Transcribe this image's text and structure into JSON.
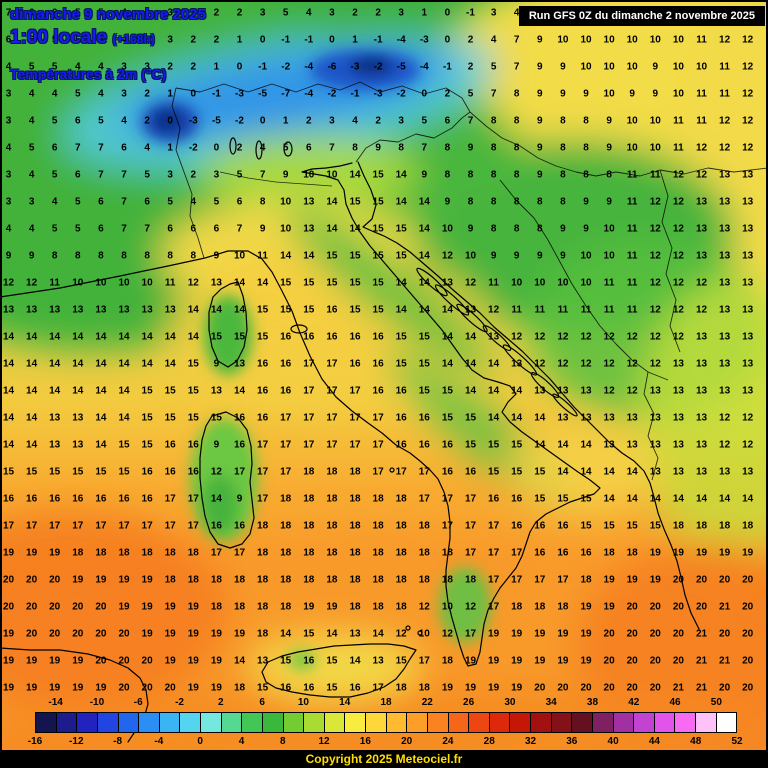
{
  "header": {
    "date_line": "dimanche 9 novembre 2025",
    "time_line": "1:00 locale",
    "offset": "(+168h)",
    "param_line": "Températures à 2m (°C)",
    "text_color": "#1d18f0"
  },
  "run_box": {
    "text": "Run GFS 0Z du dimanche 2 novembre 2025"
  },
  "footer": {
    "copyright": "Copyright 2025 Meteociel.fr",
    "text_color": "#ffdf00"
  },
  "scale": {
    "min": -16,
    "max": 52,
    "top_labels": [
      -14,
      -10,
      -6,
      -2,
      2,
      6,
      10,
      14,
      18,
      22,
      26,
      30,
      34,
      38,
      42,
      46,
      50
    ],
    "bottom_labels": [
      -16,
      -12,
      -8,
      -4,
      0,
      4,
      8,
      12,
      16,
      20,
      24,
      28,
      32,
      36,
      40,
      44,
      48,
      52
    ],
    "segment_colors": [
      "#14144f",
      "#1c1c8c",
      "#2222bf",
      "#2244e0",
      "#2266ee",
      "#2b8ef5",
      "#3ab4f2",
      "#55d4ef",
      "#74e8df",
      "#55d892",
      "#42c655",
      "#3bb83b",
      "#74cc33",
      "#aadb32",
      "#d9e838",
      "#f7ec3f",
      "#fed73a",
      "#feba30",
      "#fd9e28",
      "#fb8221",
      "#f6661a",
      "#ee4612",
      "#dd280b",
      "#c41708",
      "#a31010",
      "#841018",
      "#651021",
      "#7f2063",
      "#a131a3",
      "#c242d2",
      "#e253e9",
      "#f76bf2",
      "#ffc2f8",
      "#ffffff"
    ]
  },
  "temperature_grid": {
    "units": "°C",
    "rows": [
      [
        7,
        6,
        6,
        5,
        5,
        4,
        4,
        3,
        3,
        2,
        2,
        3,
        5,
        4,
        3,
        2,
        2,
        3,
        1,
        0,
        -1,
        3,
        4,
        8,
        9,
        10,
        10,
        10,
        10,
        11,
        10,
        12,
        12
      ],
      [
        6,
        6,
        5,
        5,
        4,
        4,
        3,
        3,
        2,
        2,
        1,
        0,
        -1,
        -1,
        0,
        1,
        -1,
        -4,
        -3,
        0,
        2,
        4,
        7,
        9,
        10,
        10,
        10,
        10,
        10,
        10,
        11,
        12,
        12
      ],
      [
        4,
        5,
        5,
        4,
        4,
        3,
        3,
        2,
        2,
        1,
        0,
        -1,
        -2,
        -4,
        -6,
        -3,
        -2,
        -5,
        -4,
        -1,
        2,
        5,
        7,
        9,
        9,
        10,
        10,
        10,
        9,
        10,
        10,
        11,
        12
      ],
      [
        3,
        4,
        4,
        5,
        4,
        3,
        2,
        1,
        0,
        -1,
        -3,
        -5,
        -7,
        -4,
        -2,
        -1,
        -3,
        -2,
        0,
        2,
        5,
        7,
        8,
        9,
        9,
        9,
        10,
        9,
        9,
        10,
        11,
        11,
        12
      ],
      [
        3,
        4,
        5,
        6,
        5,
        4,
        2,
        0,
        -3,
        -5,
        -2,
        0,
        1,
        2,
        3,
        4,
        2,
        3,
        5,
        6,
        7,
        8,
        8,
        9,
        8,
        8,
        9,
        10,
        10,
        11,
        11,
        12,
        12
      ],
      [
        4,
        5,
        6,
        7,
        7,
        6,
        4,
        1,
        -2,
        0,
        2,
        4,
        5,
        6,
        7,
        8,
        9,
        8,
        7,
        8,
        9,
        8,
        8,
        9,
        8,
        8,
        9,
        10,
        10,
        11,
        12,
        12,
        12
      ],
      [
        3,
        4,
        5,
        6,
        7,
        7,
        5,
        3,
        2,
        3,
        5,
        7,
        9,
        10,
        10,
        14,
        15,
        14,
        9,
        8,
        8,
        8,
        8,
        9,
        8,
        8,
        8,
        11,
        11,
        12,
        12,
        13,
        13
      ],
      [
        3,
        3,
        4,
        5,
        6,
        7,
        6,
        5,
        4,
        5,
        6,
        8,
        10,
        13,
        14,
        15,
        15,
        14,
        14,
        9,
        8,
        8,
        8,
        8,
        8,
        9,
        9,
        11,
        12,
        12,
        13,
        13,
        13
      ],
      [
        4,
        4,
        5,
        5,
        6,
        7,
        7,
        6,
        6,
        6,
        7,
        9,
        10,
        13,
        14,
        14,
        15,
        15,
        14,
        10,
        9,
        8,
        8,
        8,
        9,
        9,
        10,
        11,
        12,
        12,
        13,
        13,
        13
      ],
      [
        9,
        9,
        8,
        8,
        8,
        8,
        8,
        8,
        8,
        9,
        10,
        11,
        14,
        14,
        15,
        15,
        15,
        15,
        14,
        12,
        10,
        9,
        9,
        9,
        9,
        10,
        10,
        11,
        12,
        12,
        13,
        13,
        13
      ],
      [
        12,
        12,
        11,
        10,
        10,
        10,
        10,
        11,
        12,
        13,
        14,
        14,
        15,
        15,
        15,
        15,
        15,
        14,
        14,
        13,
        12,
        11,
        10,
        10,
        10,
        10,
        11,
        11,
        12,
        12,
        12,
        13,
        13
      ],
      [
        13,
        13,
        13,
        13,
        13,
        13,
        13,
        13,
        14,
        14,
        14,
        15,
        15,
        15,
        16,
        15,
        15,
        14,
        14,
        14,
        13,
        12,
        11,
        11,
        11,
        11,
        11,
        11,
        12,
        12,
        12,
        13,
        13
      ],
      [
        14,
        14,
        14,
        14,
        14,
        14,
        14,
        14,
        14,
        15,
        15,
        15,
        16,
        16,
        16,
        16,
        16,
        15,
        15,
        14,
        14,
        13,
        12,
        12,
        12,
        12,
        12,
        12,
        12,
        12,
        13,
        13,
        13
      ],
      [
        14,
        14,
        14,
        14,
        14,
        14,
        14,
        14,
        15,
        9,
        13,
        16,
        16,
        17,
        17,
        16,
        16,
        15,
        15,
        14,
        14,
        14,
        13,
        12,
        12,
        12,
        12,
        12,
        12,
        13,
        13,
        13,
        13
      ],
      [
        14,
        14,
        14,
        14,
        14,
        14,
        15,
        15,
        15,
        13,
        14,
        16,
        16,
        17,
        17,
        17,
        16,
        16,
        15,
        15,
        14,
        14,
        14,
        13,
        13,
        13,
        12,
        12,
        13,
        13,
        13,
        13,
        13
      ],
      [
        14,
        14,
        13,
        13,
        14,
        14,
        15,
        15,
        15,
        15,
        16,
        16,
        17,
        17,
        17,
        17,
        17,
        16,
        16,
        15,
        15,
        14,
        14,
        14,
        13,
        13,
        13,
        13,
        13,
        13,
        13,
        12,
        12
      ],
      [
        14,
        14,
        13,
        13,
        14,
        15,
        15,
        16,
        16,
        9,
        16,
        17,
        17,
        17,
        17,
        17,
        17,
        16,
        16,
        16,
        15,
        15,
        15,
        14,
        14,
        14,
        13,
        13,
        13,
        13,
        13,
        12,
        12
      ],
      [
        15,
        15,
        15,
        15,
        15,
        15,
        16,
        16,
        16,
        12,
        17,
        17,
        17,
        18,
        18,
        18,
        17,
        17,
        17,
        16,
        16,
        15,
        15,
        15,
        14,
        14,
        14,
        14,
        13,
        13,
        13,
        13,
        13
      ],
      [
        16,
        16,
        16,
        16,
        16,
        16,
        16,
        17,
        17,
        14,
        9,
        17,
        18,
        18,
        18,
        18,
        18,
        18,
        17,
        17,
        17,
        16,
        16,
        15,
        15,
        15,
        14,
        14,
        14,
        14,
        14,
        14,
        14
      ],
      [
        17,
        17,
        17,
        17,
        17,
        17,
        17,
        17,
        17,
        16,
        16,
        18,
        18,
        18,
        18,
        18,
        18,
        18,
        18,
        17,
        17,
        17,
        16,
        16,
        16,
        15,
        15,
        15,
        15,
        18,
        18,
        18,
        18
      ],
      [
        19,
        19,
        19,
        18,
        18,
        18,
        18,
        18,
        18,
        17,
        17,
        18,
        18,
        18,
        18,
        18,
        18,
        18,
        18,
        18,
        17,
        17,
        17,
        16,
        16,
        16,
        18,
        18,
        19,
        19,
        19,
        19,
        19
      ],
      [
        20,
        20,
        20,
        19,
        19,
        19,
        19,
        18,
        18,
        18,
        18,
        18,
        18,
        18,
        18,
        18,
        18,
        18,
        18,
        18,
        18,
        17,
        17,
        17,
        17,
        18,
        19,
        19,
        19,
        20,
        20,
        20,
        20
      ],
      [
        20,
        20,
        20,
        20,
        20,
        19,
        19,
        19,
        19,
        18,
        18,
        18,
        18,
        19,
        19,
        18,
        18,
        18,
        12,
        10,
        12,
        17,
        18,
        18,
        18,
        19,
        19,
        20,
        20,
        20,
        20,
        21,
        20
      ],
      [
        19,
        20,
        20,
        20,
        20,
        20,
        19,
        19,
        19,
        19,
        19,
        18,
        14,
        15,
        14,
        13,
        14,
        12,
        10,
        12,
        17,
        19,
        19,
        19,
        19,
        19,
        20,
        20,
        20,
        20,
        21,
        20,
        20
      ],
      [
        19,
        19,
        19,
        19,
        20,
        20,
        20,
        19,
        19,
        19,
        14,
        13,
        15,
        16,
        15,
        14,
        13,
        15,
        17,
        18,
        19,
        19,
        19,
        19,
        19,
        19,
        20,
        20,
        20,
        20,
        21,
        21,
        20
      ],
      [
        19,
        19,
        19,
        19,
        19,
        20,
        20,
        20,
        19,
        19,
        18,
        15,
        16,
        16,
        15,
        16,
        17,
        18,
        18,
        19,
        19,
        19,
        19,
        20,
        20,
        20,
        20,
        20,
        20,
        21,
        21,
        20,
        20
      ]
    ]
  }
}
